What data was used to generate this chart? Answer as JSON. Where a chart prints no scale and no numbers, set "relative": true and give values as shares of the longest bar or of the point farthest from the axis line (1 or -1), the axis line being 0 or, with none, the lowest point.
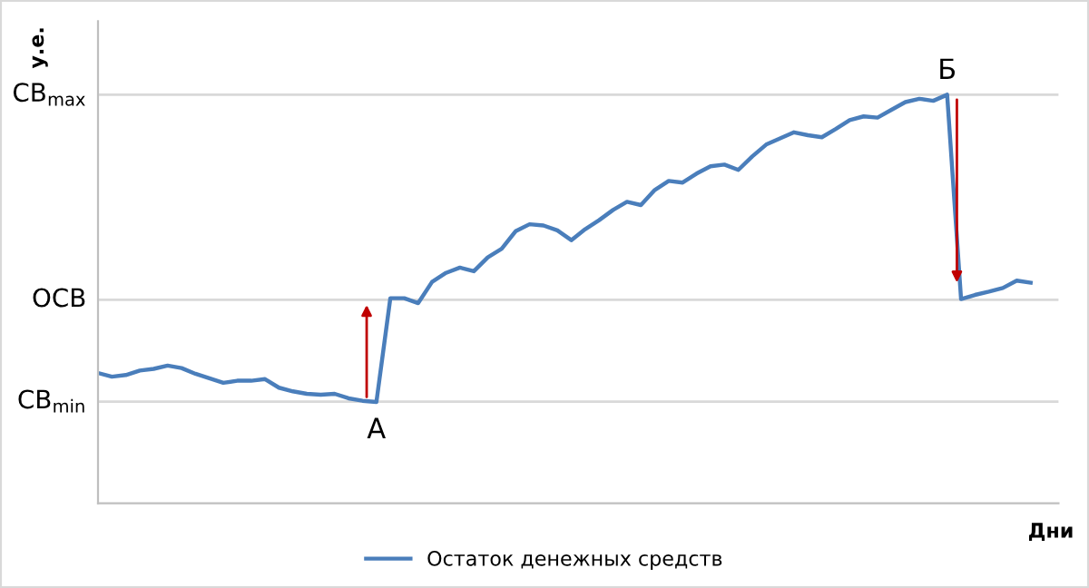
{
  "chart_data": {
    "type": "line",
    "relative": true,
    "xlabel": "Дни",
    "ylabel": "у.е.",
    "categories": [
      null,
      null,
      null,
      null,
      null,
      null,
      null,
      null,
      null,
      null,
      null,
      null,
      null,
      null,
      null,
      null,
      null,
      null,
      null,
      null,
      null,
      null,
      null,
      null,
      null,
      null,
      null,
      null,
      null,
      null,
      null,
      null,
      null,
      null,
      null,
      null,
      null,
      null,
      null,
      null,
      null,
      null,
      null,
      null,
      null,
      null,
      null,
      null,
      null,
      null,
      null,
      null,
      null,
      null,
      null,
      null,
      null,
      null,
      null,
      null,
      null,
      null,
      null,
      null,
      null,
      null,
      null,
      null
    ],
    "series": [
      {
        "name": "Остаток денежных средств",
        "color": "#4a7ebb",
        "values": [
          0.319,
          0.31,
          0.314,
          0.325,
          0.329,
          0.337,
          0.331,
          0.317,
          0.306,
          0.295,
          0.3,
          0.3,
          0.304,
          0.283,
          0.274,
          0.268,
          0.266,
          0.268,
          0.257,
          0.251,
          0.248,
          0.502,
          0.502,
          0.49,
          0.542,
          0.564,
          0.577,
          0.568,
          0.602,
          0.623,
          0.666,
          0.683,
          0.68,
          0.668,
          0.644,
          0.671,
          0.693,
          0.718,
          0.738,
          0.73,
          0.767,
          0.789,
          0.785,
          0.807,
          0.825,
          0.829,
          0.816,
          0.849,
          0.878,
          0.893,
          0.908,
          0.901,
          0.896,
          0.916,
          0.938,
          0.947,
          0.944,
          0.963,
          0.982,
          0.99,
          0.985,
          1.0,
          0.5,
          0.51,
          0.518,
          0.527,
          0.545,
          0.54
        ]
      }
    ],
    "ref_lines": [
      {
        "axis": "y",
        "value": 1.0,
        "label": "СВ$_{max}$",
        "color": "#d9d9d9"
      },
      {
        "axis": "y",
        "value": 0.498,
        "label": "ОСВ",
        "color": "#d9d9d9"
      },
      {
        "axis": "y",
        "value": 0.249,
        "label": "СВ$_{min}$",
        "color": "#d9d9d9"
      }
    ],
    "annotations": [
      "А",
      "Б"
    ],
    "legend": "bottom",
    "marker": "none",
    "line_style": "solid"
  }
}
